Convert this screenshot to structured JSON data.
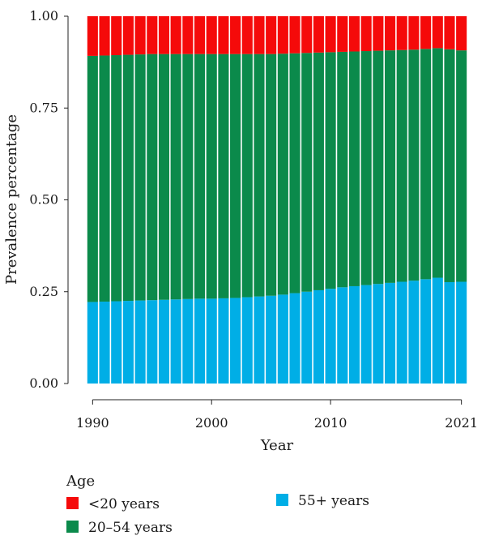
{
  "chart_data": {
    "type": "bar",
    "stacked": true,
    "xlabel": "Year",
    "ylabel": "Prevalence percentage",
    "ylim": [
      0,
      1
    ],
    "yticks": [
      "0.00",
      "0.25",
      "0.50",
      "0.75",
      "1.00"
    ],
    "xticks": [
      1990,
      2000,
      2010,
      2021
    ],
    "grid": false,
    "legend": {
      "title": "Age",
      "placement": "bottom-left"
    },
    "categories": [
      1990,
      1991,
      1992,
      1993,
      1994,
      1995,
      1996,
      1997,
      1998,
      1999,
      2000,
      2001,
      2002,
      2003,
      2004,
      2005,
      2006,
      2007,
      2008,
      2009,
      2010,
      2011,
      2012,
      2013,
      2014,
      2015,
      2016,
      2017,
      2018,
      2019,
      2020,
      2021
    ],
    "series": [
      {
        "name": "55+ years",
        "color": "#00aee6",
        "values": [
          0.222,
          0.223,
          0.224,
          0.225,
          0.226,
          0.227,
          0.228,
          0.229,
          0.23,
          0.231,
          0.231,
          0.232,
          0.233,
          0.235,
          0.237,
          0.239,
          0.242,
          0.246,
          0.25,
          0.254,
          0.258,
          0.262,
          0.265,
          0.268,
          0.271,
          0.274,
          0.277,
          0.28,
          0.284,
          0.288,
          0.276,
          0.277
        ]
      },
      {
        "name": "20–54 years",
        "color": "#0b8a4b",
        "values": [
          0.67,
          0.67,
          0.67,
          0.67,
          0.67,
          0.67,
          0.669,
          0.668,
          0.667,
          0.666,
          0.666,
          0.665,
          0.664,
          0.662,
          0.66,
          0.658,
          0.656,
          0.653,
          0.65,
          0.647,
          0.644,
          0.641,
          0.639,
          0.637,
          0.635,
          0.633,
          0.631,
          0.629,
          0.627,
          0.625,
          0.634,
          0.63
        ]
      },
      {
        "name": "<20 years",
        "color": "#f50a0a",
        "values": [
          0.108,
          0.107,
          0.106,
          0.105,
          0.104,
          0.103,
          0.103,
          0.103,
          0.103,
          0.103,
          0.103,
          0.103,
          0.103,
          0.103,
          0.103,
          0.103,
          0.102,
          0.101,
          0.1,
          0.099,
          0.098,
          0.097,
          0.096,
          0.095,
          0.094,
          0.093,
          0.092,
          0.091,
          0.089,
          0.087,
          0.09,
          0.093
        ]
      }
    ],
    "legend_order": [
      "<20 years",
      "20–54 years",
      "55+ years"
    ]
  }
}
